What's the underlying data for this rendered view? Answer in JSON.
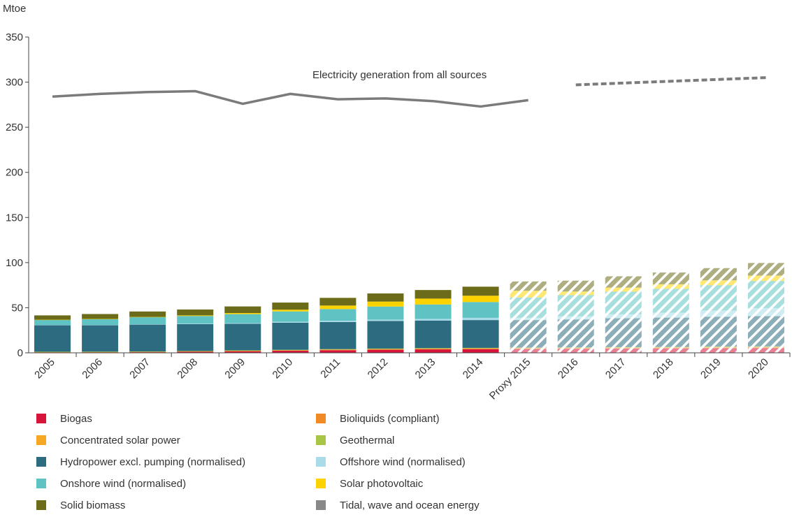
{
  "chart_data": {
    "type": "bar",
    "unit_label": "Mtoe",
    "ylim": [
      0,
      350
    ],
    "yticks": [
      0,
      50,
      100,
      150,
      200,
      250,
      300,
      350
    ],
    "categories": [
      "2005",
      "2006",
      "2007",
      "2008",
      "2009",
      "2010",
      "2011",
      "2012",
      "2013",
      "2014",
      "Proxy 2015",
      "2016",
      "2017",
      "2018",
      "2019",
      "2020"
    ],
    "projected_from": "Proxy 2015",
    "series": [
      {
        "name": "Biogas",
        "color": "#d7153a",
        "values": [
          0.6,
          0.7,
          0.9,
          1.3,
          1.8,
          2.3,
          2.9,
          3.4,
          3.8,
          4.1,
          4.3,
          4.5,
          4.7,
          4.9,
          5.1,
          5.3
        ]
      },
      {
        "name": "Bioliquids (compliant)",
        "color": "#f08a24",
        "values": [
          0.1,
          0.1,
          0.1,
          0.2,
          0.3,
          0.4,
          0.5,
          0.5,
          0.5,
          0.5,
          0.5,
          0.5,
          0.5,
          0.5,
          0.5,
          0.5
        ]
      },
      {
        "name": "Concentrated solar power",
        "color": "#f7a823",
        "values": [
          0.0,
          0.0,
          0.0,
          0.0,
          0.1,
          0.1,
          0.2,
          0.3,
          0.4,
          0.4,
          0.4,
          0.4,
          0.5,
          0.5,
          0.6,
          0.6
        ]
      },
      {
        "name": "Geothermal",
        "color": "#a8c545",
        "values": [
          0.5,
          0.5,
          0.5,
          0.5,
          0.5,
          0.5,
          0.5,
          0.5,
          0.5,
          0.5,
          0.6,
          0.6,
          0.6,
          0.6,
          0.7,
          0.7
        ]
      },
      {
        "name": "Hydropower excl. pumping (normalised)",
        "color": "#2d6b80",
        "values": [
          29.5,
          29.3,
          29.8,
          29.8,
          29.5,
          30.1,
          30.1,
          30.6,
          30.6,
          30.8,
          30.5,
          31,
          32,
          32.5,
          33,
          33.5
        ]
      },
      {
        "name": "Offshore wind (normalised)",
        "color": "#a9dce8",
        "values": [
          0.2,
          0.3,
          0.4,
          0.5,
          0.7,
          1.0,
          1.3,
          1.5,
          1.8,
          2.5,
          2.5,
          3.5,
          4.5,
          5.5,
          7.0,
          9.0
        ]
      },
      {
        "name": "Onshore wind (normalised)",
        "color": "#5fc2c3",
        "values": [
          5.7,
          6.5,
          7.8,
          8.5,
          10.0,
          11.5,
          13.0,
          14.5,
          16.0,
          17.5,
          22.5,
          23.5,
          25,
          26.5,
          28,
          30
        ]
      },
      {
        "name": "Solar photovoltaic",
        "color": "#fcd200",
        "values": [
          0.1,
          0.2,
          0.3,
          0.7,
          1.2,
          1.9,
          3.9,
          5.5,
          6.5,
          7.0,
          7.5,
          4.0,
          4.5,
          5.0,
          5.5,
          6.0
        ]
      },
      {
        "name": "Solid biomass",
        "color": "#6b6b19",
        "values": [
          4.8,
          5.4,
          6.0,
          6.5,
          7.3,
          7.9,
          8.5,
          9.0,
          9.5,
          10.0,
          10.3,
          12,
          12.5,
          13,
          13.5,
          14
        ]
      },
      {
        "name": "Tidal, wave and ocean energy",
        "color": "#888888",
        "values": [
          0.0,
          0.0,
          0.0,
          0.0,
          0.0,
          0.0,
          0.0,
          0.0,
          0.0,
          0.0,
          0.0,
          0.0,
          0.0,
          0.0,
          0.0,
          0.0
        ]
      }
    ],
    "line_series": {
      "name": "Electricity generation from all sources",
      "color": "#7b7b7b",
      "values": [
        284,
        287,
        289,
        290,
        276,
        287,
        281,
        282,
        279,
        273,
        280,
        297,
        299,
        301,
        303,
        305
      ],
      "dashed_from": "2016"
    }
  }
}
